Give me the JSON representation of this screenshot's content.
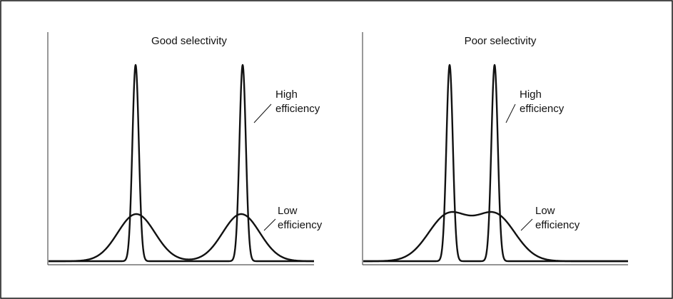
{
  "panels": [
    {
      "title": "Good selectivity",
      "high_label": [
        "High",
        "efficiency"
      ],
      "low_label": [
        "Low",
        "efficiency"
      ]
    },
    {
      "title": "Poor selectivity",
      "high_label": [
        "High",
        "efficiency"
      ],
      "low_label": [
        "Low",
        "efficiency"
      ]
    }
  ]
}
